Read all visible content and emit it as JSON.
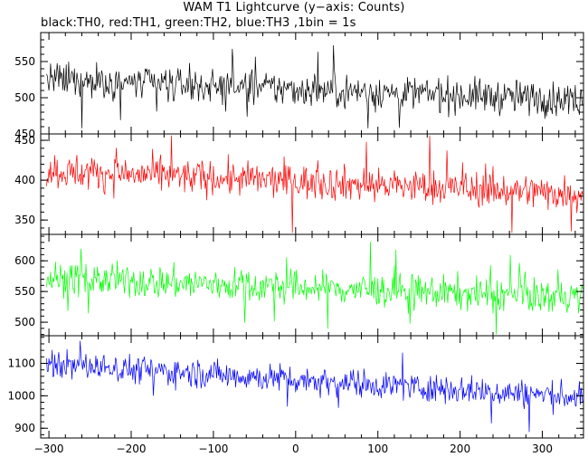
{
  "title": "WAM T1 Lightcurve (y−axis: Counts)",
  "subtitle": "black:TH0, red:TH1, green:TH2, blue:TH3 ,1bin = 1s",
  "chart_data": {
    "type": "line",
    "xlim": [
      -310,
      350
    ],
    "x_ticks": [
      -300,
      -200,
      -100,
      0,
      100,
      200,
      300
    ],
    "x_tick_labels": [
      "−300",
      "−200",
      "−100",
      "0",
      "100",
      "200",
      "300"
    ],
    "bin_seconds": 1,
    "grid": false,
    "panels": [
      {
        "name": "TH0",
        "color": "#000000",
        "ylim": [
          450,
          590
        ],
        "y_ticks": [
          450,
          500,
          550
        ],
        "y_tick_labels": [
          "450",
          "500",
          "550"
        ],
        "mean_start": 525,
        "mean_end": 497,
        "noise": 22,
        "min_clip": 452,
        "max_clip": 588
      },
      {
        "name": "TH1",
        "color": "#ff0000",
        "ylim": [
          332,
          458
        ],
        "y_ticks": [
          350,
          400,
          450
        ],
        "y_tick_labels": [
          "350",
          "400",
          "450"
        ],
        "mean_start": 412,
        "mean_end": 383,
        "noise": 20,
        "min_clip": 334,
        "max_clip": 456
      },
      {
        "name": "TH2",
        "color": "#00ff00",
        "ylim": [
          478,
          643
        ],
        "y_ticks": [
          500,
          550,
          600
        ],
        "y_tick_labels": [
          "500",
          "550",
          "600"
        ],
        "mean_start": 572,
        "mean_end": 540,
        "noise": 25,
        "min_clip": 480,
        "max_clip": 640
      },
      {
        "name": "TH3",
        "color": "#0000ff",
        "ylim": [
          870,
          1185
        ],
        "y_ticks": [
          900,
          1000,
          1100
        ],
        "y_tick_labels": [
          "900",
          "1000",
          "1100"
        ],
        "mean_start": 1100,
        "mean_end": 995,
        "noise": 40,
        "min_clip": 872,
        "max_clip": 1182
      }
    ]
  }
}
